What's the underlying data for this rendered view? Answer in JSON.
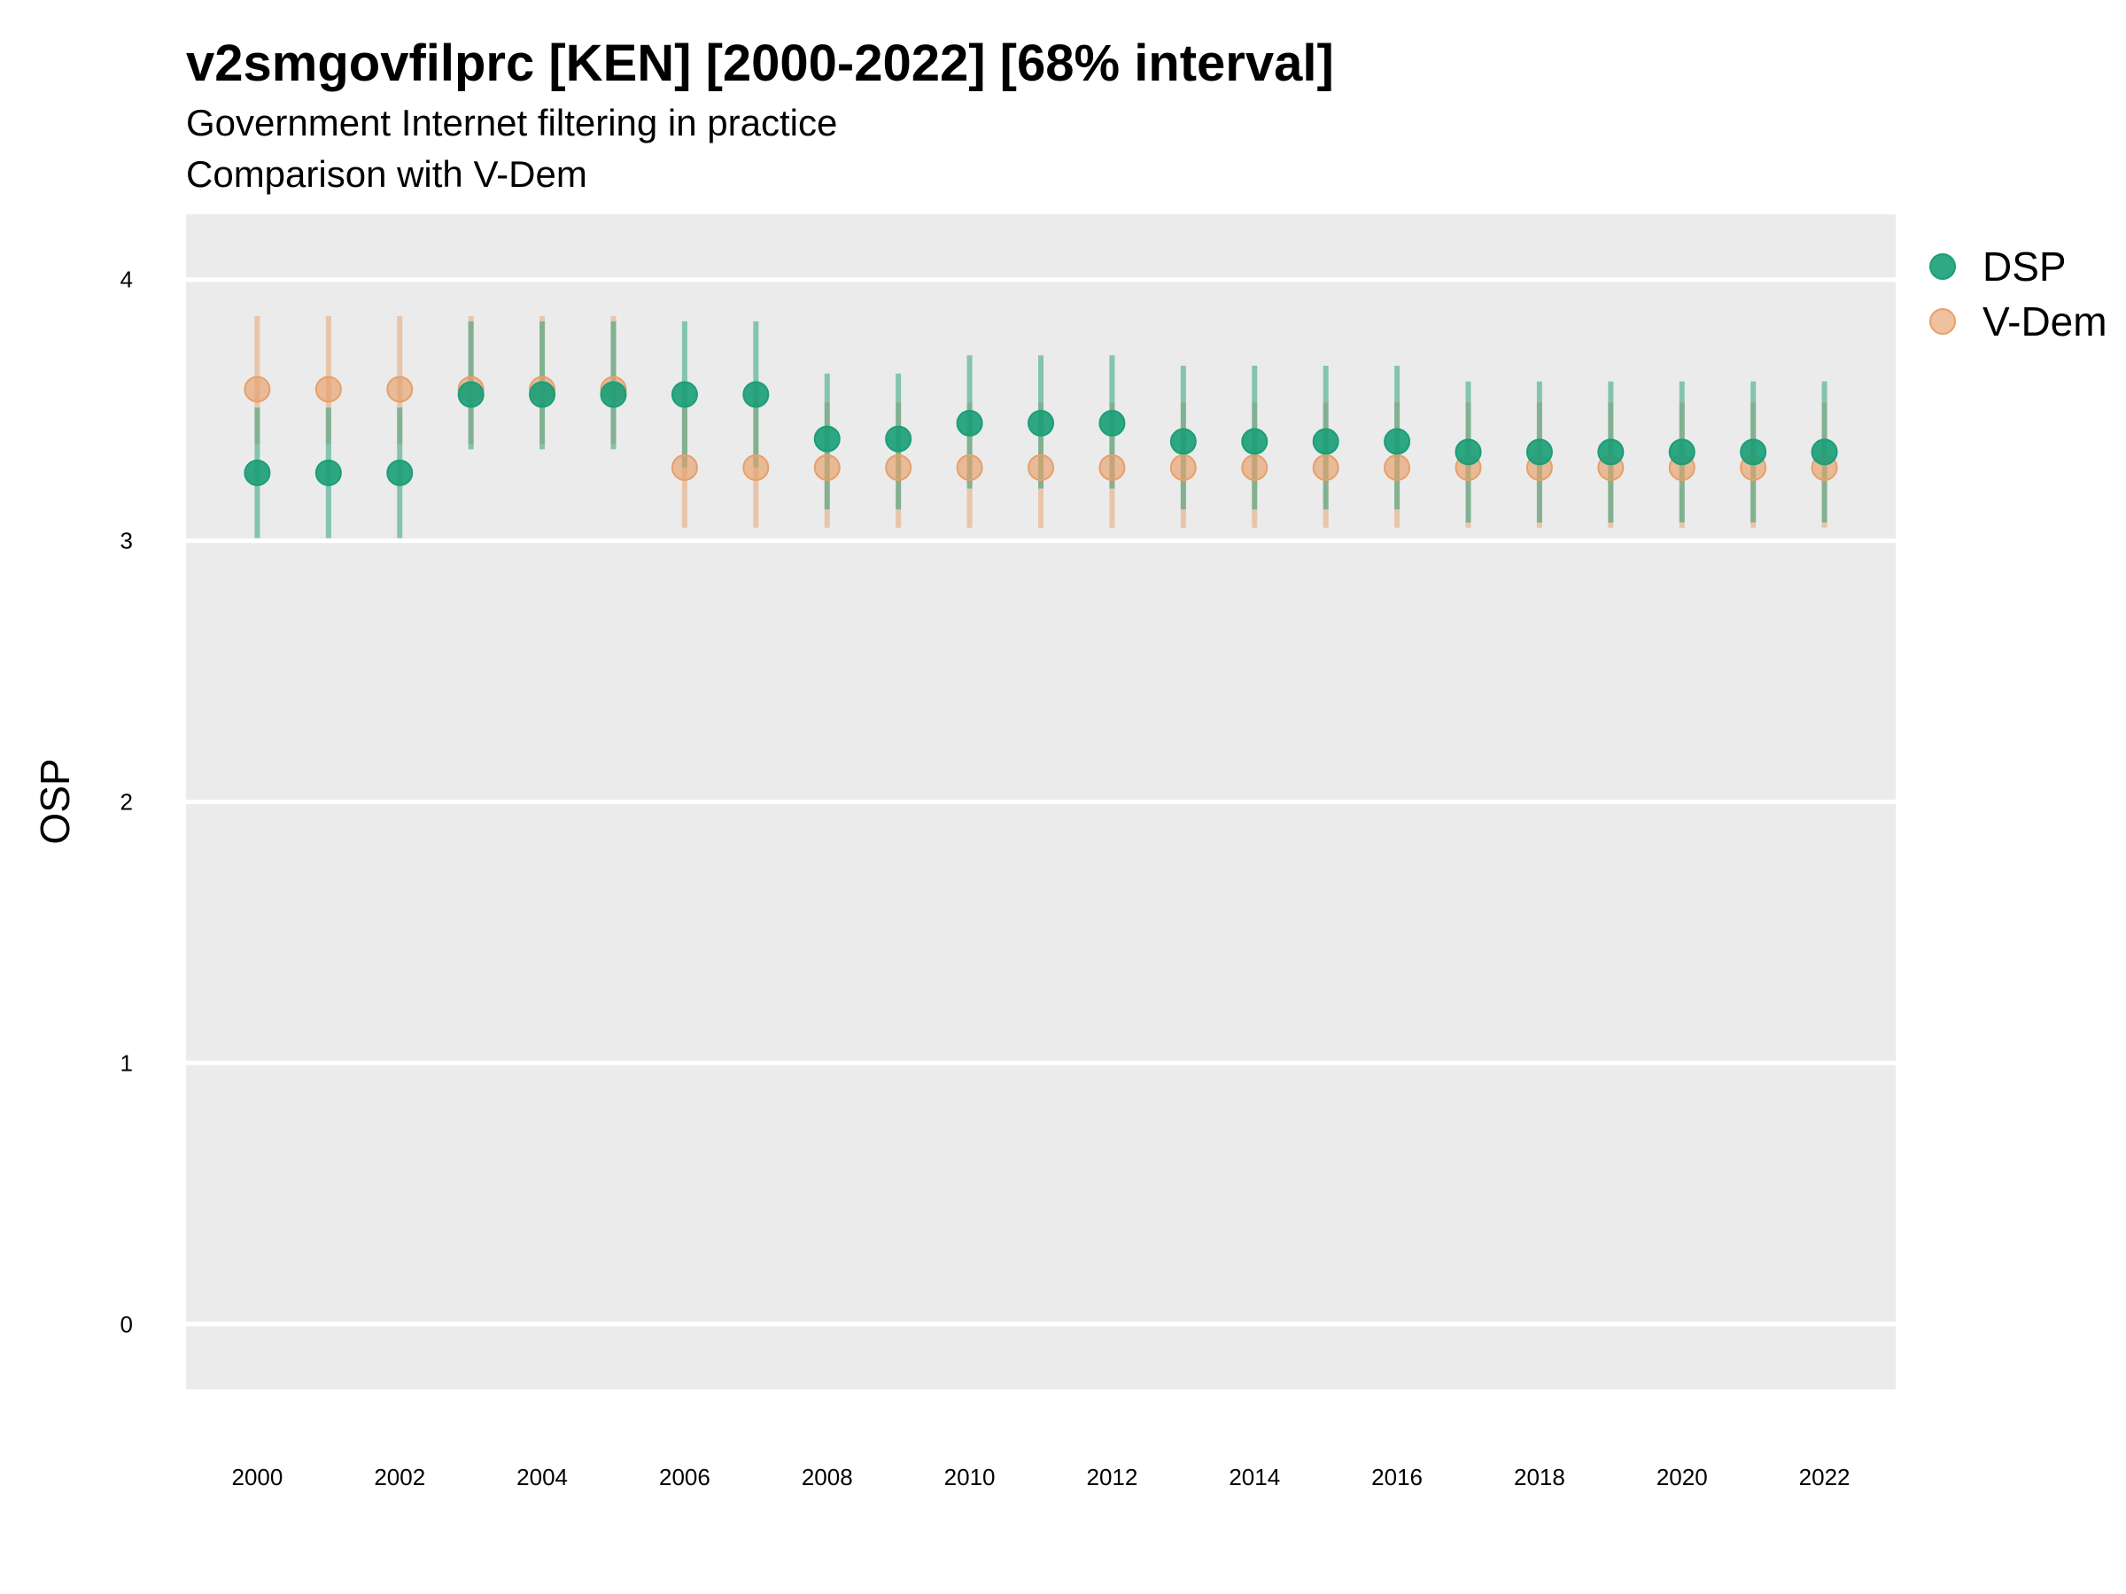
{
  "title": "v2smgovfilprc [KEN] [2000-2022] [68% interval]",
  "subtitle": "Government Internet filtering in practice",
  "caption": "Comparison with V-Dem",
  "colors": {
    "panel": "#ebebeb",
    "grid": "#ffffff",
    "DSP": "#1b9e77",
    "V-Dem": "#e6a06a"
  },
  "chart_data": {
    "type": "scatter",
    "title": "v2smgovfilprc [KEN] [2000-2022] [68% interval]",
    "ylabel": "OSP",
    "xlabel": "",
    "ylim": [
      -0.25,
      4.25
    ],
    "xlim": [
      1999,
      2023
    ],
    "yticks": [
      "0",
      "1",
      "2",
      "3",
      "4"
    ],
    "xticks": [
      "2000",
      "2002",
      "2004",
      "2006",
      "2008",
      "2010",
      "2012",
      "2014",
      "2016",
      "2018",
      "2020",
      "2022"
    ],
    "grid": true,
    "legend_position": "right",
    "legend": [
      "DSP",
      "V-Dem"
    ],
    "x": [
      2000,
      2001,
      2002,
      2003,
      2004,
      2005,
      2006,
      2007,
      2008,
      2009,
      2010,
      2011,
      2012,
      2013,
      2014,
      2015,
      2016,
      2017,
      2018,
      2019,
      2020,
      2021,
      2022
    ],
    "series": [
      {
        "name": "DSP",
        "values": [
          3.26,
          3.26,
          3.26,
          3.56,
          3.56,
          3.56,
          3.56,
          3.56,
          3.39,
          3.39,
          3.45,
          3.45,
          3.45,
          3.38,
          3.38,
          3.38,
          3.38,
          3.34,
          3.34,
          3.34,
          3.34,
          3.34,
          3.34
        ],
        "lower": [
          3.01,
          3.01,
          3.01,
          3.35,
          3.35,
          3.35,
          3.28,
          3.28,
          3.12,
          3.12,
          3.2,
          3.2,
          3.2,
          3.12,
          3.12,
          3.12,
          3.12,
          3.07,
          3.07,
          3.07,
          3.07,
          3.07,
          3.07
        ],
        "upper": [
          3.51,
          3.51,
          3.51,
          3.84,
          3.84,
          3.84,
          3.84,
          3.84,
          3.64,
          3.64,
          3.71,
          3.71,
          3.71,
          3.67,
          3.67,
          3.67,
          3.67,
          3.61,
          3.61,
          3.61,
          3.61,
          3.61,
          3.61
        ]
      },
      {
        "name": "V-Dem",
        "values": [
          3.58,
          3.58,
          3.58,
          3.58,
          3.58,
          3.58,
          3.28,
          3.28,
          3.28,
          3.28,
          3.28,
          3.28,
          3.28,
          3.28,
          3.28,
          3.28,
          3.28,
          3.28,
          3.28,
          3.28,
          3.28,
          3.28,
          3.28
        ],
        "lower": [
          3.37,
          3.37,
          3.37,
          3.37,
          3.37,
          3.37,
          3.05,
          3.05,
          3.05,
          3.05,
          3.05,
          3.05,
          3.05,
          3.05,
          3.05,
          3.05,
          3.05,
          3.05,
          3.05,
          3.05,
          3.05,
          3.05,
          3.05
        ],
        "upper": [
          3.86,
          3.86,
          3.86,
          3.86,
          3.86,
          3.86,
          3.53,
          3.53,
          3.53,
          3.53,
          3.53,
          3.53,
          3.53,
          3.53,
          3.53,
          3.53,
          3.53,
          3.53,
          3.53,
          3.53,
          3.53,
          3.53,
          3.53
        ]
      }
    ]
  }
}
